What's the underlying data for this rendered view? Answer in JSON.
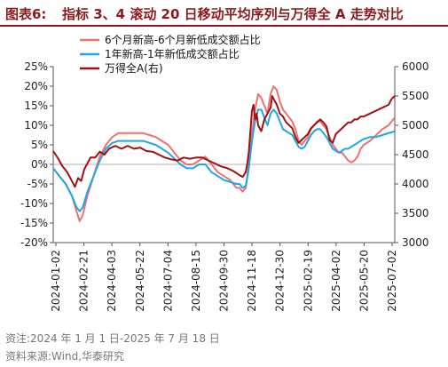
{
  "figure": {
    "label": "图表6:",
    "title": "指标 3、4 滚动 20 日移动平均序列与万得全 A 走势对比"
  },
  "notes": {
    "date_range": "资注:2024 年 1 月 1 日-2025 年 7 月 18 日",
    "source": "资料来源:Wind,华泰研究"
  },
  "chart_data": {
    "type": "line",
    "x_ticks": [
      "2024-01-02",
      "2024-02-21",
      "2024-04-03",
      "2024-05-22",
      "2024-07-04",
      "2024-08-15",
      "2024-09-30",
      "2024-11-18",
      "2024-12-30",
      "2025-02-19",
      "2025-04-02",
      "2025-05-20",
      "2025-07-02"
    ],
    "y_left": {
      "ticks": [
        "25%",
        "20%",
        "15%",
        "10%",
        "5%",
        "0%",
        "-5%",
        "-10%",
        "-15%",
        "-20%"
      ],
      "min": -0.2,
      "max": 0.25
    },
    "y_right": {
      "ticks": [
        "6000",
        "5500",
        "5000",
        "4500",
        "4000",
        "3500",
        "3000"
      ],
      "min": 3000,
      "max": 6000
    },
    "legend_position": "top-center",
    "series": [
      {
        "name": "6个月新高-6个月新低成交额占比",
        "axis": "left",
        "color": "#f07070",
        "points": [
          [
            0,
            -0.01
          ],
          [
            4,
            -0.03
          ],
          [
            8,
            -0.05
          ],
          [
            12,
            -0.08
          ],
          [
            15,
            -0.12
          ],
          [
            17,
            -0.145
          ],
          [
            19,
            -0.13
          ],
          [
            22,
            -0.08
          ],
          [
            26,
            -0.03
          ],
          [
            30,
            0.02
          ],
          [
            34,
            0.05
          ],
          [
            38,
            0.07
          ],
          [
            42,
            0.08
          ],
          [
            46,
            0.08
          ],
          [
            50,
            0.08
          ],
          [
            54,
            0.08
          ],
          [
            58,
            0.08
          ],
          [
            62,
            0.075
          ],
          [
            66,
            0.07
          ],
          [
            70,
            0.06
          ],
          [
            74,
            0.05
          ],
          [
            78,
            0.03
          ],
          [
            82,
            0.01
          ],
          [
            86,
            0.0
          ],
          [
            90,
            0.0
          ],
          [
            94,
            0.01
          ],
          [
            98,
            0.02
          ],
          [
            102,
            0.0
          ],
          [
            106,
            -0.02
          ],
          [
            110,
            -0.03
          ],
          [
            114,
            -0.04
          ],
          [
            118,
            -0.06
          ],
          [
            120,
            -0.06
          ],
          [
            122,
            -0.07
          ],
          [
            124,
            -0.06
          ],
          [
            126,
            0.0
          ],
          [
            128,
            0.08
          ],
          [
            130,
            0.14
          ],
          [
            132,
            0.18
          ],
          [
            134,
            0.17
          ],
          [
            136,
            0.15
          ],
          [
            138,
            0.13
          ],
          [
            140,
            0.18
          ],
          [
            142,
            0.2
          ],
          [
            144,
            0.19
          ],
          [
            146,
            0.16
          ],
          [
            148,
            0.14
          ],
          [
            150,
            0.13
          ],
          [
            152,
            0.12
          ],
          [
            154,
            0.11
          ],
          [
            156,
            0.09
          ],
          [
            158,
            0.06
          ],
          [
            160,
            0.05
          ],
          [
            162,
            0.06
          ],
          [
            164,
            0.07
          ],
          [
            166,
            0.09
          ],
          [
            168,
            0.1
          ],
          [
            170,
            0.11
          ],
          [
            172,
            0.11
          ],
          [
            174,
            0.1
          ],
          [
            176,
            0.09
          ],
          [
            178,
            0.07
          ],
          [
            180,
            0.05
          ],
          [
            182,
            0.04
          ],
          [
            184,
            0.03
          ],
          [
            186,
            0.03
          ],
          [
            188,
            0.02
          ],
          [
            190,
            0.01
          ],
          [
            192,
            0.005
          ],
          [
            194,
            0.01
          ],
          [
            196,
            0.02
          ],
          [
            198,
            0.04
          ],
          [
            200,
            0.05
          ],
          [
            204,
            0.06
          ],
          [
            208,
            0.075
          ],
          [
            212,
            0.09
          ],
          [
            216,
            0.1
          ],
          [
            218,
            0.11
          ],
          [
            220,
            0.12
          ]
        ]
      },
      {
        "name": "1年新高-1年新低成交额占比",
        "axis": "left",
        "color": "#1ea7e1",
        "points": [
          [
            0,
            -0.01
          ],
          [
            4,
            -0.03
          ],
          [
            8,
            -0.05
          ],
          [
            12,
            -0.08
          ],
          [
            15,
            -0.11
          ],
          [
            17,
            -0.12
          ],
          [
            19,
            -0.11
          ],
          [
            22,
            -0.07
          ],
          [
            26,
            -0.03
          ],
          [
            30,
            0.01
          ],
          [
            34,
            0.04
          ],
          [
            38,
            0.055
          ],
          [
            42,
            0.06
          ],
          [
            46,
            0.06
          ],
          [
            50,
            0.06
          ],
          [
            54,
            0.06
          ],
          [
            58,
            0.06
          ],
          [
            62,
            0.055
          ],
          [
            66,
            0.05
          ],
          [
            70,
            0.04
          ],
          [
            74,
            0.03
          ],
          [
            78,
            0.015
          ],
          [
            82,
            0.0
          ],
          [
            86,
            -0.01
          ],
          [
            90,
            -0.01
          ],
          [
            94,
            0.0
          ],
          [
            98,
            0.0
          ],
          [
            102,
            -0.02
          ],
          [
            106,
            -0.03
          ],
          [
            110,
            -0.04
          ],
          [
            114,
            -0.045
          ],
          [
            118,
            -0.05
          ],
          [
            120,
            -0.05
          ],
          [
            122,
            -0.06
          ],
          [
            124,
            -0.055
          ],
          [
            126,
            -0.01
          ],
          [
            128,
            0.06
          ],
          [
            130,
            0.11
          ],
          [
            132,
            0.14
          ],
          [
            134,
            0.14
          ],
          [
            136,
            0.12
          ],
          [
            138,
            0.1
          ],
          [
            140,
            0.13
          ],
          [
            142,
            0.14
          ],
          [
            144,
            0.13
          ],
          [
            146,
            0.11
          ],
          [
            148,
            0.09
          ],
          [
            150,
            0.085
          ],
          [
            152,
            0.08
          ],
          [
            154,
            0.075
          ],
          [
            156,
            0.06
          ],
          [
            158,
            0.045
          ],
          [
            160,
            0.04
          ],
          [
            162,
            0.045
          ],
          [
            164,
            0.06
          ],
          [
            166,
            0.075
          ],
          [
            168,
            0.085
          ],
          [
            170,
            0.09
          ],
          [
            172,
            0.09
          ],
          [
            174,
            0.08
          ],
          [
            176,
            0.07
          ],
          [
            178,
            0.055
          ],
          [
            180,
            0.04
          ],
          [
            182,
            0.035
          ],
          [
            184,
            0.03
          ],
          [
            186,
            0.035
          ],
          [
            188,
            0.04
          ],
          [
            190,
            0.04
          ],
          [
            192,
            0.045
          ],
          [
            194,
            0.05
          ],
          [
            196,
            0.055
          ],
          [
            198,
            0.06
          ],
          [
            200,
            0.065
          ],
          [
            204,
            0.07
          ],
          [
            208,
            0.07
          ],
          [
            212,
            0.075
          ],
          [
            216,
            0.08
          ],
          [
            218,
            0.082
          ],
          [
            220,
            0.085
          ]
        ]
      },
      {
        "name": "万得全A(右)",
        "axis": "right",
        "color": "#a01010",
        "points": [
          [
            0,
            4560
          ],
          [
            3,
            4440
          ],
          [
            6,
            4300
          ],
          [
            9,
            4200
          ],
          [
            12,
            4050
          ],
          [
            14,
            3950
          ],
          [
            16,
            4100
          ],
          [
            18,
            4050
          ],
          [
            20,
            4250
          ],
          [
            22,
            4350
          ],
          [
            24,
            4450
          ],
          [
            27,
            4450
          ],
          [
            30,
            4550
          ],
          [
            33,
            4500
          ],
          [
            36,
            4600
          ],
          [
            40,
            4650
          ],
          [
            44,
            4600
          ],
          [
            48,
            4650
          ],
          [
            52,
            4600
          ],
          [
            56,
            4620
          ],
          [
            60,
            4560
          ],
          [
            64,
            4550
          ],
          [
            68,
            4500
          ],
          [
            72,
            4450
          ],
          [
            76,
            4420
          ],
          [
            80,
            4400
          ],
          [
            84,
            4450
          ],
          [
            88,
            4430
          ],
          [
            92,
            4450
          ],
          [
            96,
            4450
          ],
          [
            100,
            4400
          ],
          [
            104,
            4350
          ],
          [
            108,
            4300
          ],
          [
            112,
            4270
          ],
          [
            116,
            4220
          ],
          [
            120,
            4150
          ],
          [
            122,
            4120
          ],
          [
            124,
            4200
          ],
          [
            125,
            4350
          ],
          [
            126,
            4550
          ],
          [
            127,
            4900
          ],
          [
            128,
            5250
          ],
          [
            129,
            5350
          ],
          [
            130,
            5100
          ],
          [
            131,
            5200
          ],
          [
            132,
            5000
          ],
          [
            134,
            4900
          ],
          [
            136,
            5100
          ],
          [
            138,
            5200
          ],
          [
            140,
            5300
          ],
          [
            141,
            5500
          ],
          [
            142,
            5450
          ],
          [
            144,
            5350
          ],
          [
            146,
            5200
          ],
          [
            148,
            5150
          ],
          [
            150,
            5050
          ],
          [
            152,
            5000
          ],
          [
            154,
            4950
          ],
          [
            156,
            4800
          ],
          [
            158,
            4700
          ],
          [
            160,
            4750
          ],
          [
            162,
            4800
          ],
          [
            164,
            4850
          ],
          [
            166,
            4950
          ],
          [
            168,
            5000
          ],
          [
            170,
            5050
          ],
          [
            172,
            5100
          ],
          [
            174,
            5050
          ],
          [
            176,
            4980
          ],
          [
            178,
            4750
          ],
          [
            180,
            4700
          ],
          [
            182,
            4850
          ],
          [
            184,
            4900
          ],
          [
            186,
            4950
          ],
          [
            188,
            5000
          ],
          [
            190,
            5050
          ],
          [
            192,
            5050
          ],
          [
            194,
            5100
          ],
          [
            196,
            5100
          ],
          [
            198,
            5150
          ],
          [
            200,
            5150
          ],
          [
            204,
            5200
          ],
          [
            208,
            5250
          ],
          [
            212,
            5300
          ],
          [
            216,
            5350
          ],
          [
            218,
            5450
          ],
          [
            220,
            5500
          ]
        ]
      }
    ]
  }
}
